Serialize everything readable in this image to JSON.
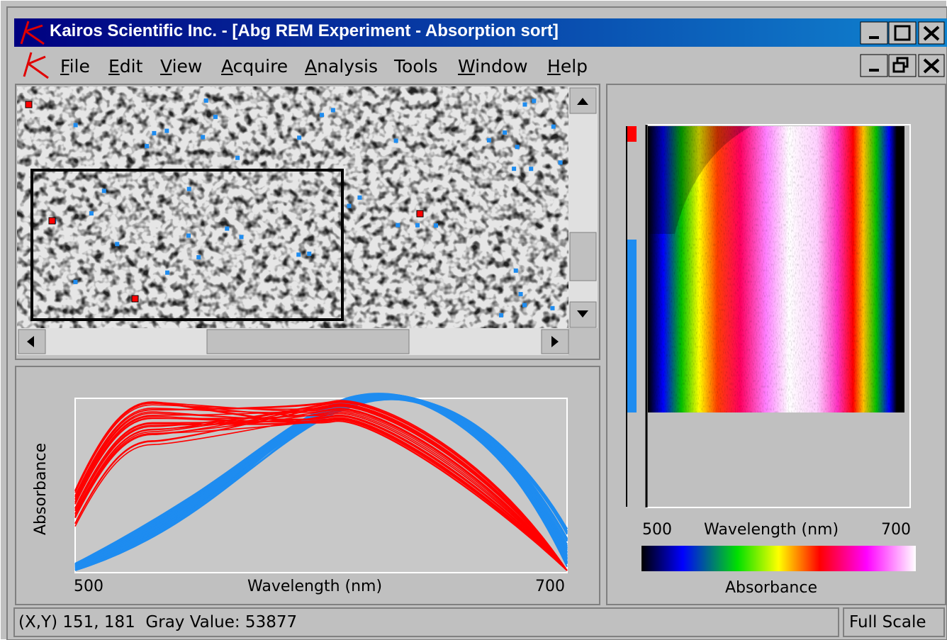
{
  "window": {
    "title": "Kairos Scientific Inc. - [Abg REM Experiment - Absorption sort]"
  },
  "menu": [
    "File",
    "Edit",
    "View",
    "Acquire",
    "Analysis",
    "Tools",
    "Window",
    "Help"
  ],
  "spectrum_plot": {
    "y_label": "Absorbance",
    "x_label": "Wavelength (nm)",
    "x_min_label": "500",
    "x_max_label": "700"
  },
  "heatmap": {
    "x_label": "Wavelength (nm)",
    "x_min_label": "500",
    "x_max_label": "700",
    "colorbar_label": "Absorbance"
  },
  "status_bar": {
    "position": "(X,Y) 151, 181  Gray Value: 53877",
    "scale": "Full Scale"
  }
}
